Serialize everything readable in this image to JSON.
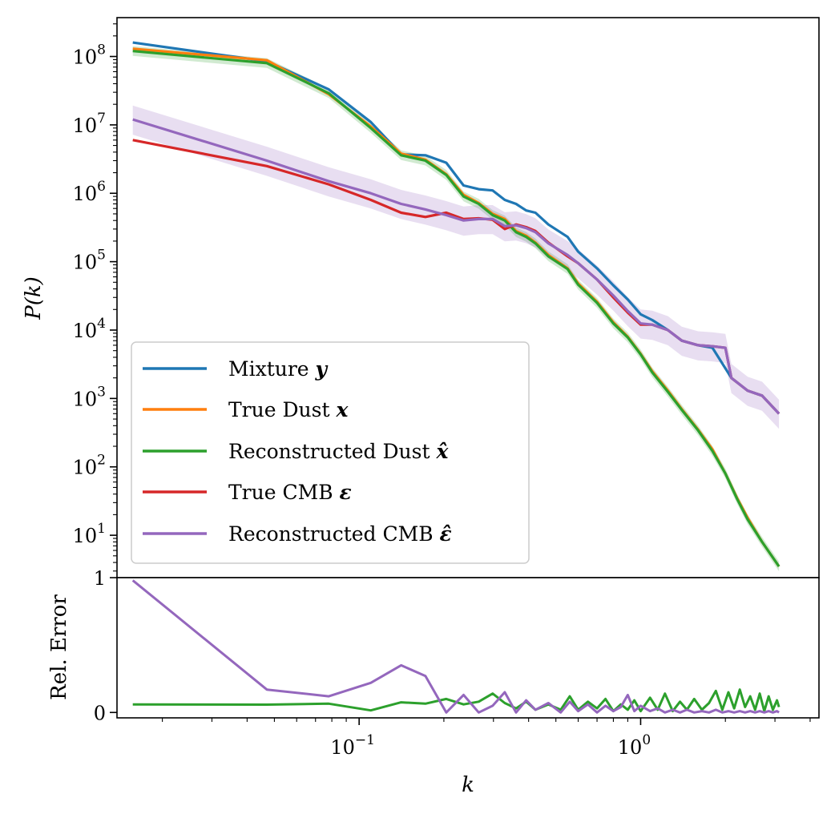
{
  "chart_data": [
    {
      "type": "line",
      "panel": "top",
      "title": "",
      "xlabel": "k",
      "ylabel": "P(k)",
      "xscale": "log",
      "yscale": "log",
      "xlim": [
        0.0138,
        4.3
      ],
      "ylim": [
        2.4,
        370000000
      ],
      "ytick_labels": [
        "10",
        "10",
        "10",
        "10",
        "10",
        "10",
        "10",
        "10"
      ],
      "ytick_exponents": [
        "1",
        "2",
        "3",
        "4",
        "5",
        "6",
        "7",
        "8"
      ],
      "legend_position": "lower-left",
      "series": [
        {
          "name": "Mixture",
          "symbol": "y",
          "color": "#1f77b4",
          "x": [
            0.0157,
            0.047,
            0.078,
            0.11,
            0.141,
            0.172,
            0.204,
            0.235,
            0.266,
            0.298,
            0.329,
            0.361,
            0.392,
            0.423,
            0.47,
            0.55,
            0.6,
            0.7,
            0.8,
            0.9,
            1.0,
            1.1,
            1.25,
            1.4,
            1.6,
            1.8,
            2.1,
            2.4,
            2.7,
            3.1
          ],
          "values": [
            160000000,
            85000000,
            33000000,
            11000000,
            3700000,
            3600000,
            2800000,
            1300000,
            1150000,
            1100000,
            800000,
            700000,
            560000,
            520000,
            350000,
            230000,
            140000,
            80000,
            45000,
            28000,
            17000,
            14000,
            10000,
            7000,
            6000,
            5500,
            2000,
            1300,
            1100,
            600
          ]
        },
        {
          "name": "True Dust",
          "symbol": "x",
          "color": "#ff7f0e",
          "x": [
            0.0157,
            0.047,
            0.078,
            0.11,
            0.141,
            0.172,
            0.204,
            0.235,
            0.266,
            0.298,
            0.329,
            0.361,
            0.392,
            0.423,
            0.47,
            0.55,
            0.6,
            0.7,
            0.8,
            0.9,
            1.0,
            1.1,
            1.25,
            1.4,
            1.6,
            1.8,
            2.0,
            2.2,
            2.4,
            2.7,
            3.1
          ],
          "values": [
            130000000,
            88000000,
            28000000,
            9500000,
            3800000,
            3100000,
            1900000,
            950000,
            720000,
            500000,
            420000,
            280000,
            240000,
            190000,
            125000,
            80000,
            48000,
            26000,
            13000,
            8000,
            4500,
            2500,
            1300,
            700,
            350,
            180,
            80,
            35,
            18,
            8,
            3.5
          ]
        },
        {
          "name": "Reconstructed Dust",
          "symbol": "x̂",
          "color": "#2ca02c",
          "band": [
            0.85,
            1.18
          ],
          "x": [
            0.0157,
            0.047,
            0.078,
            0.11,
            0.141,
            0.172,
            0.204,
            0.235,
            0.266,
            0.298,
            0.329,
            0.361,
            0.392,
            0.423,
            0.47,
            0.55,
            0.6,
            0.7,
            0.8,
            0.9,
            1.0,
            1.1,
            1.25,
            1.4,
            1.6,
            1.8,
            2.0,
            2.2,
            2.4,
            2.7,
            3.1
          ],
          "values": [
            120000000,
            80000000,
            29000000,
            9000000,
            3600000,
            3000000,
            1850000,
            900000,
            700000,
            480000,
            400000,
            270000,
            230000,
            185000,
            120000,
            78000,
            46000,
            25000,
            12500,
            7800,
            4400,
            2400,
            1250,
            680,
            340,
            170,
            80,
            34,
            17,
            8,
            3.5
          ]
        },
        {
          "name": "True CMB",
          "symbol": "ε",
          "color": "#d62728",
          "x": [
            0.0157,
            0.047,
            0.078,
            0.11,
            0.141,
            0.172,
            0.204,
            0.235,
            0.266,
            0.298,
            0.329,
            0.361,
            0.392,
            0.423,
            0.47,
            0.55,
            0.6,
            0.7,
            0.8,
            0.9,
            1.0,
            1.1,
            1.25,
            1.4,
            1.6,
            1.8,
            2.0,
            2.1,
            2.4,
            2.7,
            3.1
          ],
          "values": [
            6000000,
            2500000,
            1350000,
            800000,
            520000,
            450000,
            520000,
            420000,
            430000,
            410000,
            300000,
            350000,
            320000,
            280000,
            190000,
            120000,
            95000,
            55000,
            30000,
            18000,
            12000,
            12000,
            10000,
            7000,
            6000,
            5800,
            5500,
            2000,
            1300,
            1100,
            600
          ]
        },
        {
          "name": "Reconstructed CMB",
          "symbol": "ε̂",
          "color": "#9467bd",
          "band": [
            0.6,
            1.6
          ],
          "x": [
            0.0157,
            0.047,
            0.078,
            0.11,
            0.141,
            0.172,
            0.204,
            0.235,
            0.266,
            0.298,
            0.329,
            0.361,
            0.392,
            0.423,
            0.47,
            0.55,
            0.6,
            0.7,
            0.8,
            0.9,
            1.0,
            1.1,
            1.25,
            1.4,
            1.6,
            1.8,
            2.0,
            2.1,
            2.4,
            2.7,
            3.1
          ],
          "values": [
            12000000,
            3000000,
            1500000,
            1000000,
            700000,
            580000,
            480000,
            400000,
            420000,
            420000,
            330000,
            340000,
            310000,
            270000,
            185000,
            125000,
            95000,
            55000,
            32000,
            19000,
            12500,
            12000,
            10000,
            7000,
            6000,
            5800,
            5500,
            2000,
            1300,
            1100,
            600
          ]
        }
      ]
    },
    {
      "type": "line",
      "panel": "bottom",
      "title": "",
      "xlabel": "k",
      "ylabel": "Rel. Error",
      "xscale": "log",
      "ylim": [
        -0.04,
        1.0
      ],
      "yticks": [
        "0",
        "1"
      ],
      "xticks": [
        {
          "base": "10",
          "exponent": "−1",
          "value": 0.1
        },
        {
          "base": "10",
          "exponent": "0",
          "value": 1.0
        }
      ],
      "series": [
        {
          "name": "Reconstructed Dust",
          "color": "#2ca02c",
          "x": [
            0.0157,
            0.047,
            0.078,
            0.11,
            0.141,
            0.172,
            0.204,
            0.235,
            0.266,
            0.298,
            0.329,
            0.361,
            0.392,
            0.423,
            0.47,
            0.52,
            0.56,
            0.6,
            0.65,
            0.7,
            0.75,
            0.8,
            0.85,
            0.9,
            0.95,
            1.0,
            1.08,
            1.15,
            1.22,
            1.3,
            1.38,
            1.46,
            1.55,
            1.65,
            1.75,
            1.85,
            1.95,
            2.05,
            2.15,
            2.25,
            2.35,
            2.45,
            2.55,
            2.65,
            2.75,
            2.85,
            2.95,
            3.05,
            3.1
          ],
          "values": [
            0.06,
            0.058,
            0.065,
            0.015,
            0.075,
            0.065,
            0.1,
            0.06,
            0.08,
            0.14,
            0.07,
            0.03,
            0.08,
            0.02,
            0.06,
            0.02,
            0.12,
            0.02,
            0.08,
            0.03,
            0.1,
            0.01,
            0.06,
            0.02,
            0.09,
            0.01,
            0.11,
            0.02,
            0.14,
            0.01,
            0.08,
            0.02,
            0.1,
            0.02,
            0.07,
            0.16,
            0.02,
            0.15,
            0.03,
            0.17,
            0.04,
            0.12,
            0.02,
            0.14,
            0.01,
            0.12,
            0.02,
            0.09,
            0.04
          ]
        },
        {
          "name": "Reconstructed CMB",
          "color": "#9467bd",
          "x": [
            0.0157,
            0.047,
            0.078,
            0.11,
            0.141,
            0.172,
            0.204,
            0.235,
            0.266,
            0.298,
            0.329,
            0.361,
            0.392,
            0.423,
            0.47,
            0.52,
            0.56,
            0.6,
            0.65,
            0.7,
            0.75,
            0.8,
            0.85,
            0.9,
            0.95,
            1.0,
            1.08,
            1.15,
            1.22,
            1.3,
            1.38,
            1.46,
            1.55,
            1.65,
            1.75,
            1.85,
            1.95,
            2.05,
            2.15,
            2.25,
            2.35,
            2.45,
            2.55,
            2.65,
            2.75,
            2.85,
            2.95,
            3.05,
            3.1
          ],
          "values": [
            0.98,
            0.17,
            0.12,
            0.22,
            0.35,
            0.27,
            0.0,
            0.13,
            0.0,
            0.05,
            0.15,
            0.0,
            0.09,
            0.02,
            0.07,
            0.0,
            0.08,
            0.01,
            0.06,
            0.0,
            0.05,
            0.01,
            0.04,
            0.13,
            0.01,
            0.05,
            0.01,
            0.03,
            0.0,
            0.02,
            0.0,
            0.02,
            0.0,
            0.01,
            0.0,
            0.02,
            0.0,
            0.01,
            0.0,
            0.01,
            0.0,
            0.01,
            0.0,
            0.01,
            0.0,
            0.01,
            0.0,
            0.01,
            0.0
          ]
        }
      ]
    }
  ],
  "legend": {
    "items": [
      {
        "label": "Mixture ",
        "symbol": "y",
        "color": "#1f77b4"
      },
      {
        "label": "True Dust ",
        "symbol": "x",
        "color": "#ff7f0e"
      },
      {
        "label": "Reconstructed Dust ",
        "symbol": "x̂",
        "color": "#2ca02c"
      },
      {
        "label": "True CMB ",
        "symbol": "ε",
        "color": "#d62728"
      },
      {
        "label": "Reconstructed CMB ",
        "symbol": "ε̂",
        "color": "#9467bd"
      }
    ]
  },
  "labels": {
    "ylabel_top_main": "P(",
    "ylabel_top_var": "k",
    "ylabel_top_close": ")",
    "ylabel_bottom": "Rel. Error",
    "xlabel": "k"
  }
}
